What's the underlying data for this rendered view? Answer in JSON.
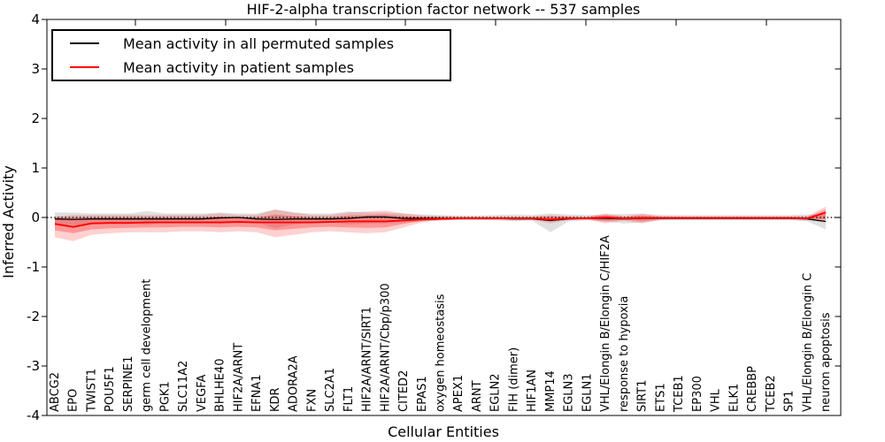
{
  "chart_data": {
    "type": "line",
    "title": "HIF-2-alpha transcription factor network -- 537 samples",
    "xlabel": "Cellular Entities",
    "ylabel": "Inferred Activity",
    "ylim": [
      -4,
      4
    ],
    "yticks": [
      4,
      3,
      2,
      1,
      0,
      -1,
      -2,
      -3,
      -4
    ],
    "grid": false,
    "zero_reference_line": "dotted",
    "legend_position": "upper left",
    "categories": [
      "ABCG2",
      "EPO",
      "TWIST1",
      "POU5F1",
      "SERPINE1",
      "germ cell development",
      "PGK1",
      "SLC11A2",
      "VEGFA",
      "BHLHE40",
      "HIF2A/ARNT",
      "EFNA1",
      "KDR",
      "ADORA2A",
      "FXN",
      "SLC2A1",
      "FLT1",
      "HIF2A/ARNT/SIRT1",
      "HIF2A/ARNT/Cbp/p300",
      "CITED2",
      "EPAS1",
      "oxygen homeostasis",
      "APEX1",
      "ARNT",
      "EGLN2",
      "FIH (dimer)",
      "HIF1AN",
      "MMP14",
      "EGLN3",
      "EGLN1",
      "VHL/Elongin B/Elongin C/HIF2A",
      "response to hypoxia",
      "SIRT1",
      "ETS1",
      "TCEB1",
      "EP300",
      "VHL",
      "ELK1",
      "CREBBP",
      "TCEB2",
      "SP1",
      "VHL/Elongin B/Elongin C",
      "neuron apoptosis"
    ],
    "series": [
      {
        "name": "Mean activity in all permuted samples",
        "color": "#000000",
        "values": [
          -0.03,
          -0.04,
          -0.03,
          -0.03,
          -0.03,
          -0.03,
          -0.03,
          -0.03,
          -0.03,
          -0.01,
          0,
          -0.03,
          -0.04,
          -0.03,
          -0.03,
          -0.03,
          -0.02,
          0.01,
          0.01,
          -0.02,
          -0.02,
          -0.02,
          -0.02,
          -0.02,
          -0.02,
          -0.03,
          -0.03,
          -0.06,
          -0.03,
          -0.02,
          -0.02,
          -0.03,
          -0.02,
          -0.02,
          -0.02,
          -0.02,
          -0.02,
          -0.02,
          -0.02,
          -0.02,
          -0.02,
          -0.03,
          -0.08
        ]
      },
      {
        "name": "Mean activity in patient samples",
        "color": "#ff0000",
        "values": [
          -0.13,
          -0.19,
          -0.12,
          -0.11,
          -0.11,
          -0.1,
          -0.1,
          -0.1,
          -0.1,
          -0.1,
          -0.09,
          -0.1,
          -0.1,
          -0.1,
          -0.1,
          -0.09,
          -0.08,
          -0.08,
          -0.08,
          -0.06,
          -0.04,
          -0.03,
          -0.02,
          -0.02,
          -0.02,
          -0.02,
          -0.02,
          -0.04,
          -0.02,
          -0.02,
          0,
          -0.02,
          -0.01,
          -0.01,
          -0.01,
          -0.01,
          -0.01,
          -0.01,
          -0.01,
          -0.01,
          -0.01,
          -0.02,
          0.1
        ]
      }
    ],
    "bands": [
      {
        "name": "permuted-samples-range-band",
        "color": "rgba(0,0,0,0.12)",
        "upper": [
          0.1,
          0.1,
          0.08,
          0.08,
          0.08,
          0.13,
          0.08,
          0.08,
          0.08,
          0.1,
          0.08,
          0.08,
          0.16,
          0.1,
          0.08,
          0.08,
          0.12,
          0.1,
          0.1,
          0.08,
          0.06,
          0.05,
          0.04,
          0.04,
          0.05,
          0.06,
          0.05,
          0.08,
          0.06,
          0.05,
          0.06,
          0.07,
          0.08,
          0.05,
          0.05,
          0.05,
          0.05,
          0.05,
          0.05,
          0.05,
          0.05,
          0.06,
          0.06
        ],
        "lower": [
          -0.14,
          -0.16,
          -0.12,
          -0.11,
          -0.1,
          -0.15,
          -0.1,
          -0.1,
          -0.1,
          -0.12,
          -0.1,
          -0.1,
          -0.22,
          -0.14,
          -0.1,
          -0.1,
          -0.14,
          -0.12,
          -0.12,
          -0.1,
          -0.08,
          -0.06,
          -0.05,
          -0.05,
          -0.06,
          -0.08,
          -0.06,
          -0.3,
          -0.08,
          -0.06,
          -0.08,
          -0.12,
          -0.1,
          -0.06,
          -0.06,
          -0.06,
          -0.06,
          -0.06,
          -0.06,
          -0.06,
          -0.06,
          -0.08,
          -0.24
        ]
      },
      {
        "name": "patient-samples-outer-band",
        "color": "rgba(255,0,0,0.18)",
        "upper": [
          0.02,
          0.05,
          0.05,
          0.05,
          0.05,
          0.05,
          0.05,
          0.05,
          0.05,
          0.08,
          0.05,
          0.05,
          0.16,
          0.1,
          0.05,
          0.05,
          0.1,
          0.12,
          0.14,
          0.08,
          0.04,
          0.03,
          0.02,
          0.02,
          0.02,
          0.02,
          0.02,
          0.05,
          0.03,
          0.02,
          0.08,
          0.03,
          0.07,
          0.03,
          0.02,
          0.02,
          0.02,
          0.02,
          0.02,
          0.02,
          0.02,
          0.03,
          0.22
        ],
        "lower": [
          -0.4,
          -0.48,
          -0.35,
          -0.32,
          -0.3,
          -0.3,
          -0.3,
          -0.28,
          -0.28,
          -0.3,
          -0.28,
          -0.3,
          -0.4,
          -0.35,
          -0.3,
          -0.28,
          -0.3,
          -0.32,
          -0.3,
          -0.2,
          -0.1,
          -0.06,
          -0.04,
          -0.04,
          -0.04,
          -0.05,
          -0.04,
          -0.12,
          -0.05,
          -0.04,
          -0.12,
          -0.06,
          -0.12,
          -0.05,
          -0.04,
          -0.04,
          -0.04,
          -0.04,
          -0.04,
          -0.04,
          -0.04,
          -0.05,
          -0.1
        ]
      },
      {
        "name": "patient-samples-inner-band",
        "color": "rgba(255,0,0,0.28)",
        "upper": [
          0,
          0,
          0,
          0,
          0,
          0,
          0,
          0,
          0,
          0.02,
          0,
          0,
          0.06,
          0.03,
          0,
          0,
          0.04,
          0.05,
          0.06,
          0.03,
          0.01,
          0.01,
          0,
          0,
          0,
          0,
          0,
          0.02,
          0.01,
          0,
          0.05,
          0.01,
          0.04,
          0.01,
          0,
          0,
          0,
          0,
          0,
          0,
          0,
          0.01,
          0.16
        ],
        "lower": [
          -0.26,
          -0.32,
          -0.24,
          -0.22,
          -0.21,
          -0.2,
          -0.2,
          -0.19,
          -0.19,
          -0.2,
          -0.19,
          -0.2,
          -0.26,
          -0.23,
          -0.2,
          -0.19,
          -0.2,
          -0.21,
          -0.2,
          -0.13,
          -0.07,
          -0.04,
          -0.03,
          -0.03,
          -0.03,
          -0.03,
          -0.03,
          -0.08,
          -0.03,
          -0.03,
          -0.08,
          -0.04,
          -0.08,
          -0.03,
          -0.03,
          -0.03,
          -0.03,
          -0.03,
          -0.03,
          -0.03,
          -0.03,
          -0.03,
          -0.04
        ]
      }
    ]
  },
  "legend": {
    "items": [
      {
        "label": "Mean activity in all permuted samples",
        "color": "#000000"
      },
      {
        "label": "Mean activity in patient samples",
        "color": "#ff0000"
      }
    ]
  }
}
